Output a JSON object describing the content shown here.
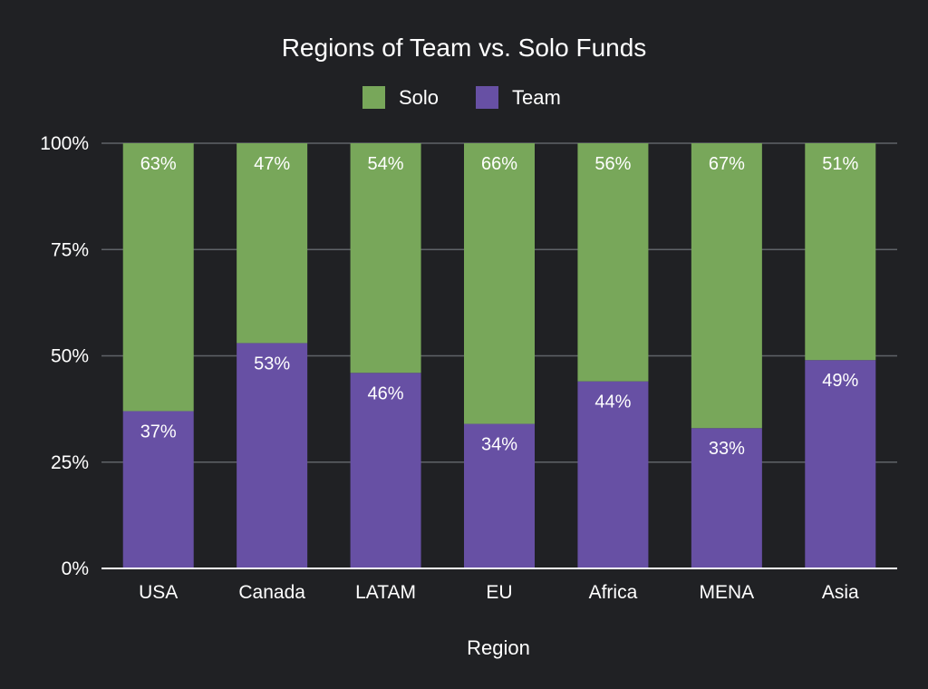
{
  "chart_data": {
    "type": "bar",
    "stacked": true,
    "percent_stacked": true,
    "title": "Regions of Team vs. Solo Funds",
    "xlabel": "Region",
    "ylabel": "",
    "categories": [
      "USA",
      "Canada",
      "LATAM",
      "EU",
      "Africa",
      "MENA",
      "Asia"
    ],
    "series": [
      {
        "name": "Team",
        "color": "#6750a4",
        "values": [
          37,
          53,
          46,
          34,
          44,
          33,
          49
        ],
        "labels": [
          "37%",
          "53%",
          "46%",
          "34%",
          "44%",
          "33%",
          "49%"
        ]
      },
      {
        "name": "Solo",
        "color": "#78a75a",
        "values": [
          63,
          47,
          54,
          66,
          56,
          67,
          51
        ],
        "labels": [
          "63%",
          "47%",
          "54%",
          "66%",
          "56%",
          "67%",
          "51%"
        ]
      }
    ],
    "legend_order": [
      "Solo",
      "Team"
    ],
    "legend_position": "top",
    "ylim": [
      0,
      100
    ],
    "yticks": [
      0,
      25,
      50,
      75,
      100
    ],
    "ytick_labels": [
      "0%",
      "25%",
      "50%",
      "75%",
      "100%"
    ],
    "grid": true,
    "colors": {
      "background": "#202124",
      "text": "#ffffff",
      "grid": "#5f6368",
      "axis": "#ffffff"
    }
  }
}
